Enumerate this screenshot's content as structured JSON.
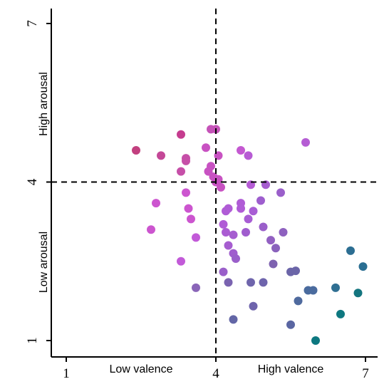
{
  "chart_data": {
    "type": "scatter",
    "title": "",
    "xlim": [
      0.7,
      7.3
    ],
    "ylim": [
      0.7,
      7.3
    ],
    "x_ticks": [
      1,
      4,
      7
    ],
    "y_ticks": [
      1,
      4,
      7
    ],
    "x_labels": {
      "low": "Low valence",
      "high": "High valence"
    },
    "y_labels": {
      "low": "Low arousal",
      "high": "High arousal"
    },
    "reference_lines": {
      "x": 4,
      "y": 4,
      "style": "dashed"
    },
    "grid": false,
    "legend": "none",
    "colors": {
      "high_arousal_low_valence": "#C4318F",
      "low_arousal_high_valence": "#11777F",
      "mid": "#8F6BC8"
    },
    "points": [
      {
        "x": 2.4,
        "y": 4.6,
        "color": "#C2407F"
      },
      {
        "x": 3.3,
        "y": 4.9,
        "color": "#C53C8F"
      },
      {
        "x": 3.9,
        "y": 5.0,
        "color": "#C553B8"
      },
      {
        "x": 4.0,
        "y": 5.0,
        "color": "#C553B8"
      },
      {
        "x": 2.9,
        "y": 4.5,
        "color": "#C44897"
      },
      {
        "x": 3.4,
        "y": 4.45,
        "color": "#C64FA8"
      },
      {
        "x": 3.3,
        "y": 4.2,
        "color": "#C64FA8"
      },
      {
        "x": 3.4,
        "y": 4.4,
        "color": "#C64FA8"
      },
      {
        "x": 3.8,
        "y": 4.65,
        "color": "#C852C2"
      },
      {
        "x": 3.9,
        "y": 4.3,
        "color": "#C852C2"
      },
      {
        "x": 3.85,
        "y": 4.2,
        "color": "#C852C2"
      },
      {
        "x": 4.05,
        "y": 4.5,
        "color": "#C852C2"
      },
      {
        "x": 4.5,
        "y": 4.6,
        "color": "#C458D1"
      },
      {
        "x": 4.65,
        "y": 4.5,
        "color": "#B75BD4"
      },
      {
        "x": 5.8,
        "y": 4.75,
        "color": "#B55DD4"
      },
      {
        "x": 3.95,
        "y": 4.1,
        "color": "#C852C2"
      },
      {
        "x": 4.0,
        "y": 4.0,
        "color": "#C852C2"
      },
      {
        "x": 4.05,
        "y": 4.05,
        "color": "#C852C2"
      },
      {
        "x": 4.1,
        "y": 3.9,
        "color": "#C852C2"
      },
      {
        "x": 3.4,
        "y": 3.8,
        "color": "#CC55CF"
      },
      {
        "x": 2.8,
        "y": 3.6,
        "color": "#CC55CF"
      },
      {
        "x": 3.45,
        "y": 3.5,
        "color": "#CC55CF"
      },
      {
        "x": 2.7,
        "y": 3.1,
        "color": "#CC55CF"
      },
      {
        "x": 3.5,
        "y": 3.3,
        "color": "#CC55CF"
      },
      {
        "x": 3.6,
        "y": 2.95,
        "color": "#C25AD8"
      },
      {
        "x": 3.3,
        "y": 2.5,
        "color": "#C25AD8"
      },
      {
        "x": 3.6,
        "y": 2.0,
        "color": "#8A65B8"
      },
      {
        "x": 4.7,
        "y": 3.95,
        "color": "#B65CD6"
      },
      {
        "x": 5.0,
        "y": 3.95,
        "color": "#A75DD0"
      },
      {
        "x": 4.2,
        "y": 3.45,
        "color": "#B05CD6"
      },
      {
        "x": 4.25,
        "y": 3.5,
        "color": "#B05CD6"
      },
      {
        "x": 4.5,
        "y": 3.6,
        "color": "#B05CD6"
      },
      {
        "x": 4.5,
        "y": 3.5,
        "color": "#B05CD6"
      },
      {
        "x": 4.75,
        "y": 3.45,
        "color": "#A85DD4"
      },
      {
        "x": 4.65,
        "y": 3.3,
        "color": "#A85DD4"
      },
      {
        "x": 4.9,
        "y": 3.65,
        "color": "#9E5ECE"
      },
      {
        "x": 5.3,
        "y": 3.8,
        "color": "#9A5FCA"
      },
      {
        "x": 4.15,
        "y": 3.2,
        "color": "#B05CD6"
      },
      {
        "x": 4.2,
        "y": 3.05,
        "color": "#AA5CD2"
      },
      {
        "x": 4.35,
        "y": 3.0,
        "color": "#A65DD0"
      },
      {
        "x": 4.6,
        "y": 3.05,
        "color": "#A05DCE"
      },
      {
        "x": 4.95,
        "y": 3.15,
        "color": "#9A5FCA"
      },
      {
        "x": 5.1,
        "y": 2.9,
        "color": "#9260C2"
      },
      {
        "x": 5.35,
        "y": 3.05,
        "color": "#8E61BF"
      },
      {
        "x": 4.25,
        "y": 2.8,
        "color": "#A65DD0"
      },
      {
        "x": 4.35,
        "y": 2.65,
        "color": "#A05DCE"
      },
      {
        "x": 4.4,
        "y": 2.55,
        "color": "#9A5FCA"
      },
      {
        "x": 5.2,
        "y": 2.75,
        "color": "#8A62BC"
      },
      {
        "x": 5.15,
        "y": 2.45,
        "color": "#7E62B0"
      },
      {
        "x": 4.15,
        "y": 2.3,
        "color": "#9A5FCA"
      },
      {
        "x": 5.5,
        "y": 2.3,
        "color": "#6B65A8"
      },
      {
        "x": 5.6,
        "y": 2.32,
        "color": "#6B65A8"
      },
      {
        "x": 4.25,
        "y": 2.1,
        "color": "#7A63B0"
      },
      {
        "x": 4.7,
        "y": 2.1,
        "color": "#6F65AC"
      },
      {
        "x": 4.95,
        "y": 2.1,
        "color": "#6E64AC"
      },
      {
        "x": 4.75,
        "y": 1.65,
        "color": "#6E64AC"
      },
      {
        "x": 4.35,
        "y": 1.4,
        "color": "#6366A6"
      },
      {
        "x": 5.5,
        "y": 1.3,
        "color": "#5A66A2"
      },
      {
        "x": 5.65,
        "y": 1.75,
        "color": "#4F6A9E"
      },
      {
        "x": 5.85,
        "y": 1.95,
        "color": "#4A6B9E"
      },
      {
        "x": 5.95,
        "y": 1.95,
        "color": "#4A6B9E"
      },
      {
        "x": 6.4,
        "y": 2.0,
        "color": "#2F6F92"
      },
      {
        "x": 6.7,
        "y": 2.7,
        "color": "#2C6E92"
      },
      {
        "x": 6.95,
        "y": 2.4,
        "color": "#2A6E92"
      },
      {
        "x": 6.85,
        "y": 1.9,
        "color": "#14757F"
      },
      {
        "x": 6.5,
        "y": 1.5,
        "color": "#0E7880"
      },
      {
        "x": 6.0,
        "y": 1.0,
        "color": "#0D7880"
      }
    ]
  }
}
